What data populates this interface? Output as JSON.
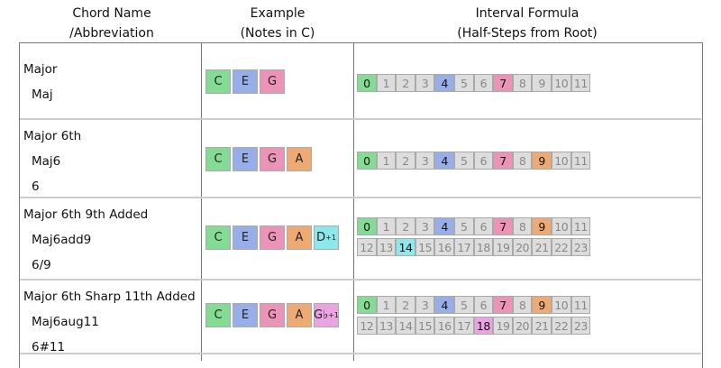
{
  "headers": {
    "name": [
      "Chord Name",
      "/Abbreviation"
    ],
    "example": [
      "Example",
      "(Notes in C)"
    ],
    "formula": [
      "Interval Formula",
      "(Half-Steps from Root)"
    ]
  },
  "colors": {
    "inactive": "#dddddd",
    "green": "#84dc94",
    "blue": "#97aee8",
    "pink": "#eb94b8",
    "orange": "#eeaa72",
    "cyan": "#8de8ec",
    "violet": "#eaa4e2"
  },
  "rows": [
    {
      "name": "Major",
      "abbreviations": [
        "Maj"
      ],
      "notes": [
        {
          "label": "C",
          "color": "#84dc94"
        },
        {
          "label": "E",
          "color": "#97aee8"
        },
        {
          "label": "G",
          "color": "#eb94b8"
        }
      ],
      "interval_rows": 1,
      "active": {
        "0": "#84dc94",
        "4": "#97aee8",
        "7": "#eb94b8"
      }
    },
    {
      "name": "Major 6th",
      "abbreviations": [
        "Maj6",
        "6"
      ],
      "notes": [
        {
          "label": "C",
          "color": "#84dc94"
        },
        {
          "label": "E",
          "color": "#97aee8"
        },
        {
          "label": "G",
          "color": "#eb94b8"
        },
        {
          "label": "A",
          "color": "#eeaa72"
        }
      ],
      "interval_rows": 1,
      "active": {
        "0": "#84dc94",
        "4": "#97aee8",
        "7": "#eb94b8",
        "9": "#eeaa72"
      }
    },
    {
      "name": "Major 6th 9th Added",
      "abbreviations": [
        "Maj6add9",
        "6/9"
      ],
      "notes": [
        {
          "label": "C",
          "color": "#84dc94"
        },
        {
          "label": "E",
          "color": "#97aee8"
        },
        {
          "label": "G",
          "color": "#eb94b8"
        },
        {
          "label": "A",
          "color": "#eeaa72"
        },
        {
          "label": "D",
          "sub": "+1",
          "color": "#8de8ec"
        }
      ],
      "interval_rows": 2,
      "active": {
        "0": "#84dc94",
        "4": "#97aee8",
        "7": "#eb94b8",
        "9": "#eeaa72",
        "14": "#8de8ec"
      }
    },
    {
      "name": "Major 6th Sharp 11th Added",
      "abbreviations": [
        "Maj6aug11",
        "6#11"
      ],
      "notes": [
        {
          "label": "C",
          "color": "#84dc94"
        },
        {
          "label": "E",
          "color": "#97aee8"
        },
        {
          "label": "G",
          "color": "#eb94b8"
        },
        {
          "label": "A",
          "color": "#eeaa72"
        },
        {
          "label": "G♭",
          "sub": "+1",
          "color": "#eaa4e2"
        }
      ],
      "interval_rows": 2,
      "active": {
        "0": "#84dc94",
        "4": "#97aee8",
        "7": "#eb94b8",
        "9": "#eeaa72",
        "18": "#eaa4e2"
      }
    }
  ]
}
